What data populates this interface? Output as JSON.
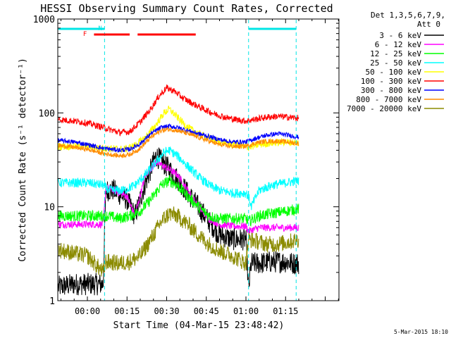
{
  "chart_data": {
    "type": "line",
    "title": "HESSI Observing Summary Count Rates, Corrected",
    "xlabel": "Start Time (04-Mar-15 23:48:42)",
    "ylabel": "Corrected Count Rate (s⁻¹ detector⁻¹)",
    "y_scale": "log",
    "ylim": [
      1,
      1000
    ],
    "xlim_minutes": [
      -11.2,
      95.2
    ],
    "x_ticks": [
      {
        "label": "00:00",
        "minutes": 0
      },
      {
        "label": "00:15",
        "minutes": 15
      },
      {
        "label": "00:30",
        "minutes": 30
      },
      {
        "label": "00:45",
        "minutes": 45
      },
      {
        "label": "01:00",
        "minutes": 60
      },
      {
        "label": "01:15",
        "minutes": 75
      }
    ],
    "y_ticks": [
      {
        "label": "1",
        "value": 1
      },
      {
        "label": "10",
        "value": 10
      },
      {
        "label": "100",
        "value": 100
      },
      {
        "label": "1000",
        "value": 1000
      }
    ],
    "legend_header": [
      "Det 1,3,5,6,7,9,",
      "Att 0"
    ],
    "legend_position": "right",
    "footer_date": "5-Mar-2015 18:10",
    "flag_labels": [
      {
        "text": "F",
        "minute": 0.5,
        "color": "#ff0000"
      },
      {
        "text": "N",
        "minute": 2.5,
        "color": "#00e5e5"
      }
    ],
    "flag_bars": [
      {
        "start": -11,
        "end": 6.5,
        "color": "#00e5e5"
      },
      {
        "start": 61,
        "end": 79,
        "color": "#00e5e5"
      },
      {
        "start": 2.5,
        "end": 16,
        "color": "#ff0000"
      },
      {
        "start": 19,
        "end": 41,
        "color": "#ff0000"
      }
    ],
    "dashed_lines_minutes": [
      6.5,
      61,
      79
    ],
    "series": [
      {
        "name": "3 - 6 keV",
        "color": "#000000",
        "x": [
          -11,
          -5,
          6,
          7,
          10,
          15,
          18,
          22,
          26,
          30,
          34,
          38,
          42,
          46,
          50,
          55,
          60,
          61,
          62,
          65,
          70,
          75,
          78,
          80
        ],
        "y": [
          1.4,
          1.5,
          1.5,
          15,
          15,
          12,
          8,
          18,
          35,
          27,
          20,
          14,
          10,
          7,
          5,
          4.5,
          4.5,
          1.3,
          2.5,
          2.5,
          2.6,
          2.6,
          2.5,
          2.5
        ]
      },
      {
        "name": "6 - 12 keV",
        "color": "#ff00ff",
        "x": [
          -11,
          0,
          6,
          7,
          10,
          15,
          18,
          22,
          26,
          30,
          34,
          38,
          42,
          46,
          50,
          55,
          60,
          61,
          65,
          70,
          75,
          80
        ],
        "y": [
          6.5,
          6.5,
          6.5,
          16,
          15,
          13,
          8,
          22,
          30,
          26,
          22,
          15,
          10,
          7.5,
          6.5,
          6.2,
          6.2,
          5.5,
          6,
          6,
          6,
          6
        ]
      },
      {
        "name": "12 - 25 keV",
        "color": "#00ff00",
        "x": [
          -11,
          0,
          6,
          8,
          12,
          16,
          20,
          24,
          28,
          31,
          34,
          38,
          42,
          46,
          50,
          55,
          60,
          61,
          65,
          70,
          75,
          80
        ],
        "y": [
          8,
          8,
          8,
          8,
          7.5,
          8,
          9,
          12,
          17,
          19,
          17,
          13,
          10,
          8,
          7.5,
          7.5,
          7.5,
          7,
          8,
          8.5,
          9,
          9.5
        ]
      },
      {
        "name": "25 - 50 keV",
        "color": "#00ffff",
        "x": [
          -11,
          0,
          6,
          8,
          14,
          18,
          22,
          26,
          29,
          31,
          34,
          38,
          42,
          46,
          50,
          55,
          60,
          61,
          62,
          65,
          70,
          75,
          80
        ],
        "y": [
          18,
          18,
          17,
          15,
          15,
          17,
          22,
          30,
          38,
          40,
          35,
          27,
          21,
          17,
          15,
          14,
          14,
          13,
          10,
          15,
          17,
          18,
          19
        ]
      },
      {
        "name": "50 - 100 keV",
        "color": "#ffff00",
        "x": [
          -11,
          0,
          6,
          14,
          18,
          22,
          26,
          29,
          31,
          34,
          38,
          42,
          46,
          50,
          55,
          60,
          61,
          65,
          70,
          75,
          80
        ],
        "y": [
          44,
          44,
          42,
          41,
          45,
          55,
          75,
          100,
          110,
          90,
          70,
          60,
          54,
          49,
          46,
          44,
          43,
          46,
          48,
          49,
          48
        ]
      },
      {
        "name": "100 - 300 keV",
        "color": "#ff0000",
        "x": [
          -11,
          -5,
          0,
          6,
          12,
          16,
          20,
          24,
          27,
          30,
          33,
          36,
          40,
          44,
          48,
          52,
          56,
          60,
          64,
          68,
          72,
          76,
          80
        ],
        "y": [
          85,
          82,
          78,
          70,
          62,
          63,
          80,
          110,
          150,
          185,
          170,
          145,
          125,
          110,
          98,
          90,
          85,
          82,
          86,
          90,
          92,
          90,
          88
        ]
      },
      {
        "name": "300 - 800 keV",
        "color": "#0000ff",
        "x": [
          -11,
          -5,
          0,
          6,
          12,
          16,
          20,
          24,
          28,
          31,
          34,
          38,
          42,
          46,
          50,
          55,
          60,
          64,
          68,
          72,
          76,
          80
        ],
        "y": [
          51,
          49,
          46,
          42,
          40,
          41,
          47,
          60,
          70,
          72,
          70,
          65,
          60,
          56,
          52,
          49,
          49,
          54,
          58,
          60,
          58,
          55
        ]
      },
      {
        "name": "800 - 7000 keV",
        "color": "#ff8c00",
        "x": [
          -11,
          -5,
          0,
          6,
          12,
          16,
          20,
          24,
          28,
          31,
          34,
          38,
          42,
          46,
          50,
          55,
          60,
          64,
          68,
          72,
          76,
          80
        ],
        "y": [
          45,
          43,
          41,
          37,
          35,
          36,
          42,
          55,
          65,
          67,
          65,
          60,
          55,
          50,
          46,
          44,
          44,
          48,
          50,
          50,
          49,
          47
        ]
      },
      {
        "name": "7000 - 20000 keV",
        "color": "#8b8b00",
        "x": [
          -11,
          -5,
          0,
          6,
          7,
          12,
          16,
          20,
          24,
          28,
          31,
          34,
          38,
          42,
          46,
          50,
          55,
          60,
          61,
          64,
          68,
          72,
          76,
          80
        ],
        "y": [
          3.5,
          3.2,
          3,
          2,
          2.6,
          2.5,
          2.6,
          3,
          4.5,
          7,
          8.5,
          8,
          6.5,
          5,
          4,
          3.4,
          3,
          2.5,
          4.5,
          4.3,
          4,
          4,
          4.2,
          4.5
        ]
      }
    ]
  }
}
